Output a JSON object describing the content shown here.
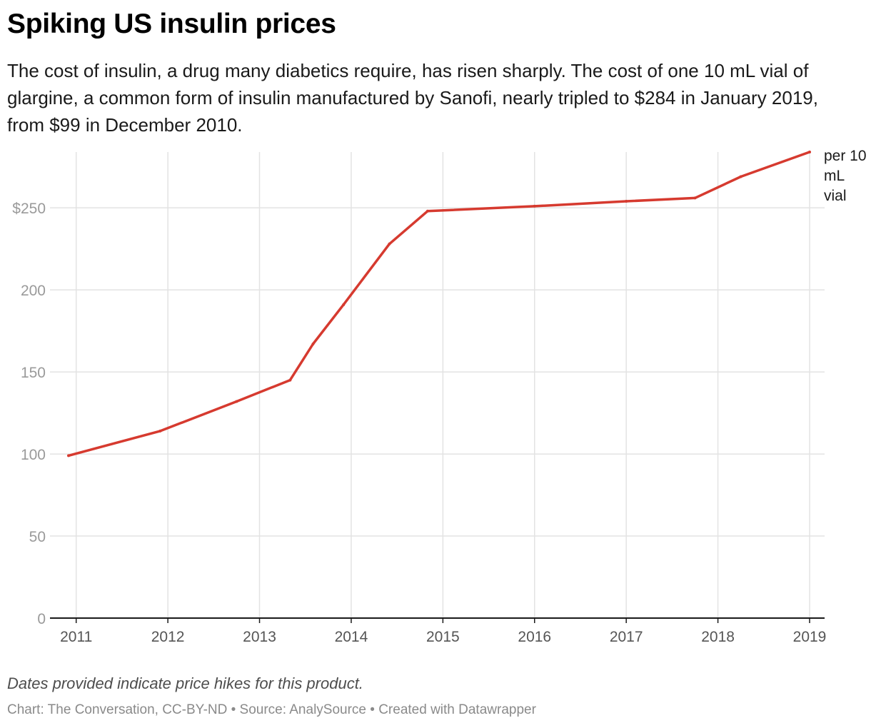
{
  "header": {
    "title": "Spiking US insulin prices",
    "subtitle": "The cost of insulin, a drug many diabetics require, has risen sharply. The cost of one 10 mL vial of glargine, a common form of insulin manufactured by Sanofi, nearly tripled to $284 in January 2019, from $99 in December 2010."
  },
  "footer": {
    "note": "Dates provided indicate price hikes for this product.",
    "credits": "Chart: The Conversation, CC-BY-ND • Source: AnalySource • Created with Datawrapper"
  },
  "colors": {
    "line": "#d63a2f",
    "grid": "#e3e3e3",
    "axis": "#1a1a1a",
    "tick_text": "#9a9a9a",
    "x_tick_text": "#555555"
  },
  "chart_data": {
    "type": "line",
    "title": "Spiking US insulin prices",
    "series_label": "per 10 mL vial",
    "x_ticks": [
      "2011",
      "2012",
      "2013",
      "2014",
      "2015",
      "2016",
      "2017",
      "2018",
      "2019"
    ],
    "y_ticks": [
      {
        "value": 0,
        "label": "0"
      },
      {
        "value": 50,
        "label": "50"
      },
      {
        "value": 100,
        "label": "100"
      },
      {
        "value": 150,
        "label": "150"
      },
      {
        "value": 200,
        "label": "200"
      },
      {
        "value": 250,
        "label": "$250"
      }
    ],
    "ylim": [
      0,
      284
    ],
    "xlim": [
      "2010-12",
      "2019-01"
    ],
    "grid": true,
    "points": [
      {
        "x": "2010-12",
        "y": 99
      },
      {
        "x": "2011-12",
        "y": 114
      },
      {
        "x": "2012-10",
        "y": 132
      },
      {
        "x": "2013-05",
        "y": 145
      },
      {
        "x": "2013-08",
        "y": 167
      },
      {
        "x": "2013-12",
        "y": 191
      },
      {
        "x": "2014-06",
        "y": 228
      },
      {
        "x": "2014-11",
        "y": 248
      },
      {
        "x": "2016-01",
        "y": 251
      },
      {
        "x": "2017-01",
        "y": 254
      },
      {
        "x": "2017-10",
        "y": 256
      },
      {
        "x": "2018-04",
        "y": 269
      },
      {
        "x": "2019-01",
        "y": 284
      }
    ]
  }
}
